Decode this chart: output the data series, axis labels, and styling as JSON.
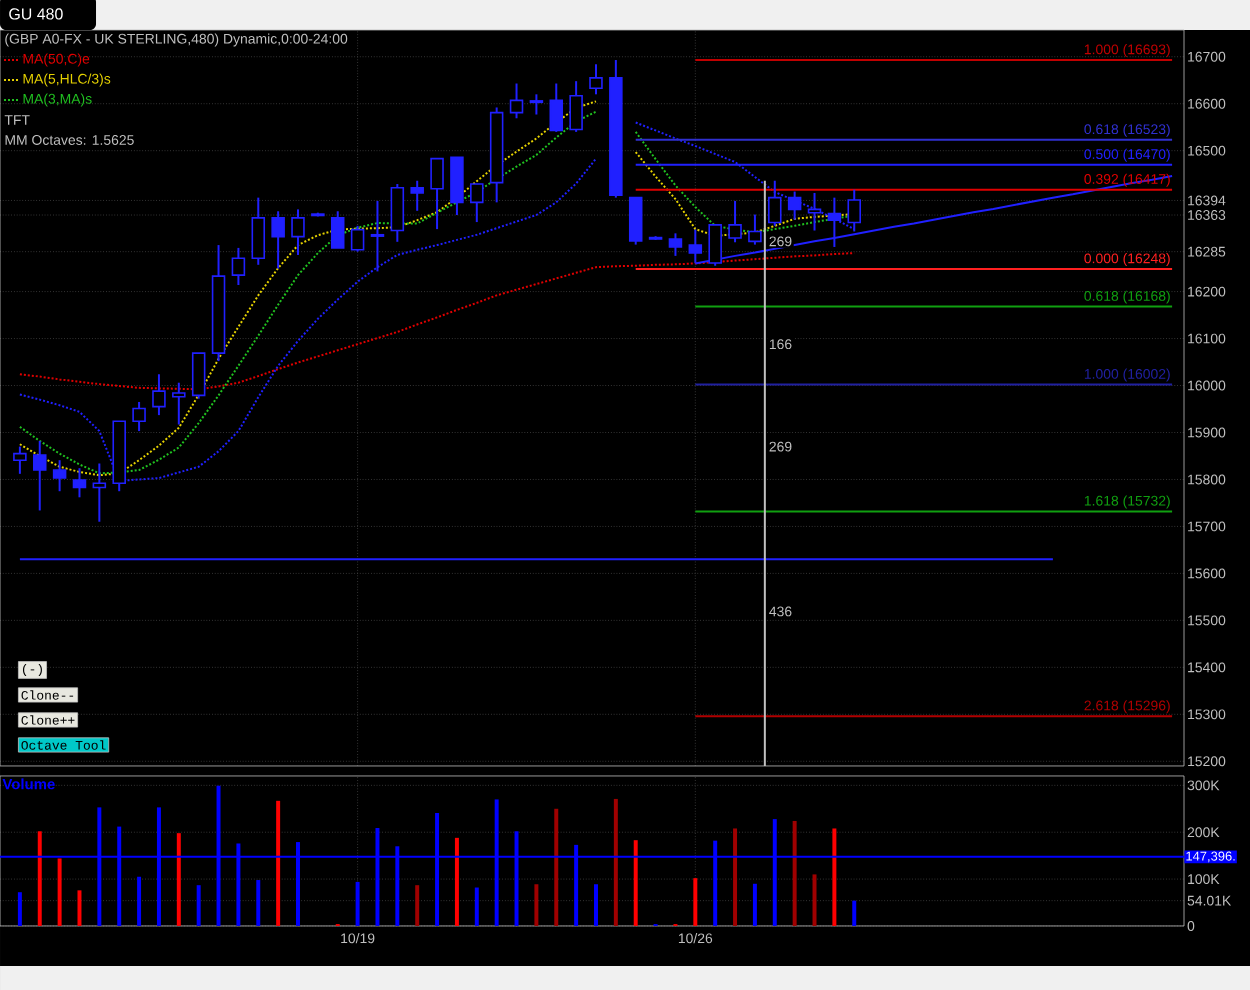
{
  "chart_data": [
    {
      "type": "candlestick",
      "title": "GU 480",
      "subtitle": "(GBP A0-FX - UK STERLING,480) Dynamic,0:00-24:00",
      "color": "#2020ff",
      "categories": [
        null,
        null,
        null,
        null,
        null,
        null,
        null,
        null,
        null,
        null,
        null,
        null,
        null,
        null,
        null,
        null,
        null,
        null,
        null,
        null,
        null,
        null,
        null,
        null,
        null,
        null,
        null,
        null,
        null,
        null,
        null,
        null,
        null,
        null,
        null,
        null,
        null,
        null,
        null,
        null,
        null,
        null,
        null,
        null,
        null,
        null,
        null,
        null,
        null,
        null,
        null,
        null,
        null,
        null,
        null,
        null,
        null,
        null,
        null
      ],
      "ohlc": [
        [
          15841,
          15870,
          15812,
          15855
        ],
        [
          15852,
          15882,
          15734,
          15820
        ],
        [
          15820,
          15841,
          15775,
          15803
        ],
        [
          15799,
          15824,
          15762,
          15783
        ],
        [
          15783,
          15834,
          15710,
          15792
        ],
        [
          15792,
          15924,
          15775,
          15924
        ],
        [
          15924,
          15965,
          15903,
          15951
        ],
        [
          15955,
          16024,
          15937,
          15988
        ],
        [
          15976,
          16006,
          15917,
          15984
        ],
        [
          15979,
          16069,
          15972,
          16069
        ],
        [
          16069,
          16299,
          16052,
          16233
        ],
        [
          16235,
          16293,
          16214,
          16271
        ],
        [
          16271,
          16400,
          16257,
          16357
        ],
        [
          16357,
          16371,
          16249,
          16317
        ],
        [
          16317,
          16375,
          16278,
          16357
        ],
        [
          16362,
          16368,
          16360,
          16365
        ],
        [
          16357,
          16371,
          16293,
          16293
        ],
        [
          16289,
          16340,
          16285,
          16332
        ],
        [
          16318,
          16393,
          16243,
          16321
        ],
        [
          16330,
          16429,
          16306,
          16421
        ],
        [
          16421,
          16436,
          16372,
          16410
        ],
        [
          16419,
          16483,
          16333,
          16483
        ],
        [
          16486,
          16486,
          16363,
          16390
        ],
        [
          16390,
          16429,
          16348,
          16429
        ],
        [
          16432,
          16592,
          16390,
          16581
        ],
        [
          16581,
          16643,
          16569,
          16607
        ],
        [
          16603,
          16620,
          16577,
          16606
        ],
        [
          16607,
          16643,
          16540,
          16543
        ],
        [
          16545,
          16648,
          16540,
          16617
        ],
        [
          16633,
          16684,
          16620,
          16655
        ],
        [
          16655,
          16693,
          16400,
          16405
        ],
        [
          16400,
          16400,
          16300,
          16308
        ],
        [
          16312,
          16318,
          16310,
          16315
        ],
        [
          16312,
          16324,
          16276,
          16295
        ],
        [
          16299,
          16332,
          16261,
          16282
        ],
        [
          16261,
          16342,
          16255,
          16342
        ],
        [
          16314,
          16393,
          16305,
          16342
        ],
        [
          16307,
          16364,
          16300,
          16328
        ],
        [
          16347,
          16436,
          16340,
          16400
        ],
        [
          16400,
          16413,
          16353,
          16375
        ],
        [
          16368,
          16410,
          16330,
          16375
        ],
        [
          16366,
          16400,
          16295,
          16352
        ],
        [
          16347,
          16417,
          16328,
          16395
        ],
        null,
        null,
        null,
        null,
        null,
        null,
        null,
        null,
        null,
        null,
        null,
        null,
        null,
        null,
        null,
        null
      ],
      "series": [
        {
          "type": "line",
          "name": "MA(50,C)e",
          "color": "#e00000",
          "line_style": "dotted",
          "values": [
            16024,
            16019,
            16013,
            16008,
            16003,
            15999,
            15995,
            15994,
            15993,
            15992,
            15998,
            16006,
            16020,
            16035,
            16049,
            16062,
            16075,
            16088,
            16101,
            16114,
            16130,
            16145,
            16161,
            16176,
            16192,
            16204,
            16216,
            16228,
            16240,
            16252,
            16254,
            16255,
            16257,
            16258,
            16260,
            16263,
            16266,
            16269,
            16272,
            16275,
            16277,
            16280,
            16282,
            null,
            null,
            null,
            null,
            null,
            null,
            null,
            null,
            null,
            null,
            null,
            null,
            null,
            null,
            null,
            null
          ]
        },
        {
          "type": "line",
          "name": "MA(5,HLC/3)s",
          "color": "#e6d200",
          "line_style": "dotted",
          "values": [
            15875,
            15850,
            15827,
            15816,
            15809,
            15813,
            15841,
            15872,
            15910,
            15980,
            16057,
            16125,
            16192,
            16250,
            16299,
            16320,
            16332,
            16334,
            16335,
            16337,
            16352,
            16369,
            16400,
            16435,
            16469,
            16498,
            16526,
            16560,
            16591,
            16605,
            null,
            16497,
            16445,
            16397,
            16333,
            16319,
            16322,
            16326,
            16340,
            16355,
            16359,
            16362,
            16365,
            null,
            null,
            null,
            null,
            null,
            null,
            null,
            null,
            null,
            null,
            null,
            null,
            null,
            null,
            null,
            null
          ]
        },
        {
          "type": "line",
          "name": "MA(3,MA)s",
          "color": "#20c020",
          "line_style": "dotted",
          "values": [
            15912,
            15882,
            15855,
            15832,
            15813,
            15815,
            15820,
            15842,
            15868,
            15920,
            15979,
            16042,
            16106,
            16172,
            16235,
            16282,
            16320,
            16336,
            16346,
            16345,
            16345,
            16368,
            16390,
            16412,
            16440,
            16466,
            16491,
            16528,
            16562,
            16583,
            null,
            16540,
            16482,
            16426,
            16380,
            16340,
            16332,
            16326,
            16333,
            16340,
            16348,
            16355,
            16362,
            null,
            null,
            null,
            null,
            null,
            null,
            null,
            null,
            null,
            null,
            null,
            null,
            null,
            null,
            null,
            null
          ]
        },
        {
          "type": "line",
          "color": "#2020ff",
          "line_style": "dotted",
          "values": [
            15981,
            15970,
            15958,
            15944,
            15903,
            15797,
            15800,
            15803,
            15815,
            15827,
            15860,
            15903,
            15975,
            16042,
            16095,
            16142,
            16183,
            16221,
            16252,
            16278,
            16289,
            16299,
            16310,
            16321,
            16335,
            16349,
            16363,
            16390,
            16430,
            16483,
            null,
            16560,
            16543,
            16526,
            16510,
            16493,
            16476,
            16444,
            16412,
            16394,
            16376,
            16355,
            16333,
            null,
            null,
            null,
            null,
            null,
            null,
            null,
            null,
            null,
            null,
            null,
            null,
            null,
            null,
            null,
            null
          ]
        },
        {
          "type": "line",
          "color": "#2020ff",
          "line_style": "solid",
          "values": [
            null,
            null,
            null,
            null,
            null,
            null,
            null,
            null,
            null,
            null,
            null,
            null,
            null,
            null,
            null,
            null,
            null,
            null,
            null,
            null,
            null,
            null,
            null,
            null,
            null,
            null,
            null,
            null,
            null,
            null,
            null,
            null,
            null,
            null,
            16260,
            16268,
            16276,
            16283,
            16291,
            16299,
            16307,
            16314,
            16322,
            16330,
            16338,
            16345,
            16353,
            16361,
            16369,
            16376,
            16384,
            16392,
            16400,
            16407,
            16415,
            16423,
            16431,
            16438,
            16446
          ]
        },
        {
          "type": "line",
          "color": "#2020ff",
          "line_style": "solid",
          "values": [
            15630,
            15630,
            15630,
            15630,
            15630,
            15630,
            15630,
            15630,
            15630,
            15630,
            15630,
            15630,
            15630,
            15630,
            15630,
            15630,
            15630,
            15630,
            15630,
            15630,
            15630,
            15630,
            15630,
            15630,
            15630,
            15630,
            15630,
            15630,
            15630,
            15630,
            15630,
            15630,
            15630,
            15630,
            15630,
            15630,
            15630,
            15630,
            15630,
            15630,
            15630,
            15630,
            15630,
            15630,
            15630,
            15630,
            15630,
            15630,
            15630,
            15630,
            15630,
            15630,
            15630,
            null,
            null,
            null,
            null,
            null,
            null
          ]
        },
        {
          "type": "line",
          "name": "1.000 (16693)",
          "color": "#c00000",
          "line_style": "solid",
          "values": [
            null,
            null,
            null,
            null,
            null,
            null,
            null,
            null,
            null,
            null,
            null,
            null,
            null,
            null,
            null,
            null,
            null,
            null,
            null,
            null,
            null,
            null,
            null,
            null,
            null,
            null,
            null,
            null,
            null,
            null,
            null,
            null,
            null,
            null,
            16693,
            16693,
            16693,
            16693,
            16693,
            16693,
            16693,
            16693,
            16693,
            16693,
            16693,
            16693,
            16693,
            16693,
            16693,
            16693,
            16693,
            16693,
            16693,
            16693,
            16693,
            16693,
            16693,
            16693,
            16693
          ]
        },
        {
          "type": "line",
          "name": "0.618 (16523)",
          "color": "#3030d0",
          "line_style": "solid",
          "values": [
            null,
            null,
            null,
            null,
            null,
            null,
            null,
            null,
            null,
            null,
            null,
            null,
            null,
            null,
            null,
            null,
            null,
            null,
            null,
            null,
            null,
            null,
            null,
            null,
            null,
            null,
            null,
            null,
            null,
            null,
            null,
            16523,
            16523,
            16523,
            16523,
            16523,
            16523,
            16523,
            16523,
            16523,
            16523,
            16523,
            16523,
            16523,
            16523,
            16523,
            16523,
            16523,
            16523,
            16523,
            16523,
            16523,
            16523,
            16523,
            16523,
            16523,
            16523,
            16523,
            16523
          ]
        },
        {
          "type": "line",
          "name": "0.500 (16470)",
          "color": "#2020ff",
          "line_style": "solid",
          "values": [
            null,
            null,
            null,
            null,
            null,
            null,
            null,
            null,
            null,
            null,
            null,
            null,
            null,
            null,
            null,
            null,
            null,
            null,
            null,
            null,
            null,
            null,
            null,
            null,
            null,
            null,
            null,
            null,
            null,
            null,
            null,
            16470,
            16470,
            16470,
            16470,
            16470,
            16470,
            16470,
            16470,
            16470,
            16470,
            16470,
            16470,
            16470,
            16470,
            16470,
            16470,
            16470,
            16470,
            16470,
            16470,
            16470,
            16470,
            16470,
            16470,
            16470,
            16470,
            16470,
            16470
          ]
        },
        {
          "type": "line",
          "name": "0.392 (16417)",
          "color": "#e00000",
          "line_style": "solid",
          "values": [
            null,
            null,
            null,
            null,
            null,
            null,
            null,
            null,
            null,
            null,
            null,
            null,
            null,
            null,
            null,
            null,
            null,
            null,
            null,
            null,
            null,
            null,
            null,
            null,
            null,
            null,
            null,
            null,
            null,
            null,
            null,
            16417,
            16417,
            16417,
            16417,
            16417,
            16417,
            16417,
            16417,
            16417,
            16417,
            16417,
            16417,
            16417,
            16417,
            16417,
            16417,
            16417,
            16417,
            16417,
            16417,
            16417,
            16417,
            16417,
            16417,
            16417,
            16417,
            16417,
            16417
          ]
        },
        {
          "type": "line",
          "name": "0.000 (16248)",
          "color": "#ff2020",
          "line_style": "solid",
          "values": [
            null,
            null,
            null,
            null,
            null,
            null,
            null,
            null,
            null,
            null,
            null,
            null,
            null,
            null,
            null,
            null,
            null,
            null,
            null,
            null,
            null,
            null,
            null,
            null,
            null,
            null,
            null,
            null,
            null,
            null,
            null,
            16248,
            16248,
            16248,
            16248,
            16248,
            16248,
            16248,
            16248,
            16248,
            16248,
            16248,
            16248,
            16248,
            16248,
            16248,
            16248,
            16248,
            16248,
            16248,
            16248,
            16248,
            16248,
            16248,
            16248,
            16248,
            16248,
            16248,
            16248
          ]
        },
        {
          "type": "line",
          "name": "0.618 (16168)",
          "color": "#10a010",
          "line_style": "solid",
          "values": [
            null,
            null,
            null,
            null,
            null,
            null,
            null,
            null,
            null,
            null,
            null,
            null,
            null,
            null,
            null,
            null,
            null,
            null,
            null,
            null,
            null,
            null,
            null,
            null,
            null,
            null,
            null,
            null,
            null,
            null,
            null,
            null,
            null,
            null,
            16168,
            16168,
            16168,
            16168,
            16168,
            16168,
            16168,
            16168,
            16168,
            16168,
            16168,
            16168,
            16168,
            16168,
            16168,
            16168,
            16168,
            16168,
            16168,
            16168,
            16168,
            16168,
            16168,
            16168,
            16168
          ]
        },
        {
          "type": "line",
          "name": "1.000 (16002)",
          "color": "#2020a0",
          "line_style": "solid",
          "values": [
            null,
            null,
            null,
            null,
            null,
            null,
            null,
            null,
            null,
            null,
            null,
            null,
            null,
            null,
            null,
            null,
            null,
            null,
            null,
            null,
            null,
            null,
            null,
            null,
            null,
            null,
            null,
            null,
            null,
            null,
            null,
            null,
            null,
            null,
            16002,
            16002,
            16002,
            16002,
            16002,
            16002,
            16002,
            16002,
            16002,
            16002,
            16002,
            16002,
            16002,
            16002,
            16002,
            16002,
            16002,
            16002,
            16002,
            16002,
            16002,
            16002,
            16002,
            16002,
            16002
          ]
        },
        {
          "type": "line",
          "name": "1.618 (15732)",
          "color": "#10a010",
          "line_style": "solid",
          "values": [
            null,
            null,
            null,
            null,
            null,
            null,
            null,
            null,
            null,
            null,
            null,
            null,
            null,
            null,
            null,
            null,
            null,
            null,
            null,
            null,
            null,
            null,
            null,
            null,
            null,
            null,
            null,
            null,
            null,
            null,
            null,
            null,
            null,
            null,
            15732,
            15732,
            15732,
            15732,
            15732,
            15732,
            15732,
            15732,
            15732,
            15732,
            15732,
            15732,
            15732,
            15732,
            15732,
            15732,
            15732,
            15732,
            15732,
            15732,
            15732,
            15732,
            15732,
            15732,
            15732
          ]
        },
        {
          "type": "line",
          "name": "2.618 (15296)",
          "color": "#b00000",
          "line_style": "solid",
          "values": [
            null,
            null,
            null,
            null,
            null,
            null,
            null,
            null,
            null,
            null,
            null,
            null,
            null,
            null,
            null,
            null,
            null,
            null,
            null,
            null,
            null,
            null,
            null,
            null,
            null,
            null,
            null,
            null,
            null,
            null,
            null,
            null,
            null,
            null,
            15296,
            15296,
            15296,
            15296,
            15296,
            15296,
            15296,
            15296,
            15296,
            15296,
            15296,
            15296,
            15296,
            15296,
            15296,
            15296,
            15296,
            15296,
            15296,
            15296,
            15296,
            15296,
            15296,
            15296,
            15296
          ]
        }
      ],
      "ylim": [
        15190,
        16757
      ],
      "yticks": [
        15200,
        15300,
        15400,
        15500,
        15600,
        15700,
        15800,
        15900,
        16000,
        16100,
        16200,
        16285,
        16363,
        16394,
        16500,
        16600,
        16700
      ],
      "tick_labels": "y",
      "grid": true,
      "legend": "top left",
      "annotations": [
        "TFT",
        "MM Octaves: 1.5625",
        "(-)",
        "Clone--",
        "Clone++",
        "Octave Tool",
        {
          "text": "269",
          "y": 16307
        },
        {
          "text": "166",
          "y": 16088
        },
        {
          "text": "269",
          "y": 15870
        },
        {
          "text": "436",
          "y": 15519
        }
      ]
    },
    {
      "type": "bar",
      "title": "Volume",
      "categories": [
        null,
        null,
        null,
        null,
        null,
        null,
        null,
        null,
        null,
        null,
        null,
        null,
        null,
        null,
        null,
        null,
        null,
        "10/19",
        null,
        null,
        null,
        null,
        null,
        null,
        null,
        null,
        null,
        null,
        null,
        null,
        null,
        null,
        null,
        null,
        "10/26",
        null,
        null,
        null,
        null,
        null,
        null,
        null,
        null,
        null,
        null,
        null,
        null,
        null,
        null,
        null,
        null,
        null,
        null,
        null,
        null,
        null,
        null,
        null,
        null
      ],
      "values": [
        72000,
        202000,
        144000,
        76000,
        253000,
        212000,
        105000,
        253000,
        198000,
        87000,
        299000,
        176000,
        98000,
        267000,
        179000,
        null,
        4000,
        94000,
        209000,
        170000,
        87000,
        241000,
        188000,
        82000,
        270000,
        202000,
        89000,
        250000,
        173000,
        89000,
        271000,
        183000,
        4000,
        4000,
        102000,
        182000,
        208000,
        90000,
        228000,
        224000,
        110000,
        208000,
        54010,
        null,
        null,
        null,
        null,
        null,
        null,
        null,
        null,
        null,
        null,
        null,
        null,
        null,
        null,
        null,
        null
      ],
      "colors": [
        "#0000ff",
        "#ff0000",
        "#ff0000",
        "#ff0000",
        "#0000ff",
        "#0000ff",
        "#0000ff",
        "#0000ff",
        "#ff0000",
        "#0000ff",
        "#0000ff",
        "#0000ff",
        "#0000ff",
        "#ff0000",
        "#0000ff",
        "#0000ff",
        "#ff0000",
        "#0000ff",
        "#0000ff",
        "#0000ff",
        "#a00000",
        "#0000ff",
        "#ff0000",
        "#0000ff",
        "#0000ff",
        "#0000ff",
        "#a00000",
        "#a00000",
        "#0000ff",
        "#0000ff",
        "#a00000",
        "#ff0000",
        "#0000ff",
        "#ff0000",
        "#ff0000",
        "#0000ff",
        "#a00000",
        "#0000ff",
        "#0000ff",
        "#a00000",
        "#a00000",
        "#ff0000",
        "#0000ff",
        null,
        null,
        null,
        null,
        null,
        null,
        null,
        null,
        null,
        null,
        null,
        null,
        null,
        null,
        null,
        null
      ],
      "ylim": [
        0,
        320000
      ],
      "yticks": [
        {
          "value": 0,
          "label": "0"
        },
        {
          "value": 54010,
          "label": "54.01K"
        },
        {
          "value": 100000,
          "label": "100K"
        },
        {
          "value": 200000,
          "label": "200K"
        },
        {
          "value": 300000,
          "label": "300K"
        }
      ],
      "grid": true,
      "ref_lines": [
        {
          "axis": "y",
          "value": 147396,
          "label": "147,396.",
          "color": "#0000ff"
        }
      ]
    }
  ]
}
